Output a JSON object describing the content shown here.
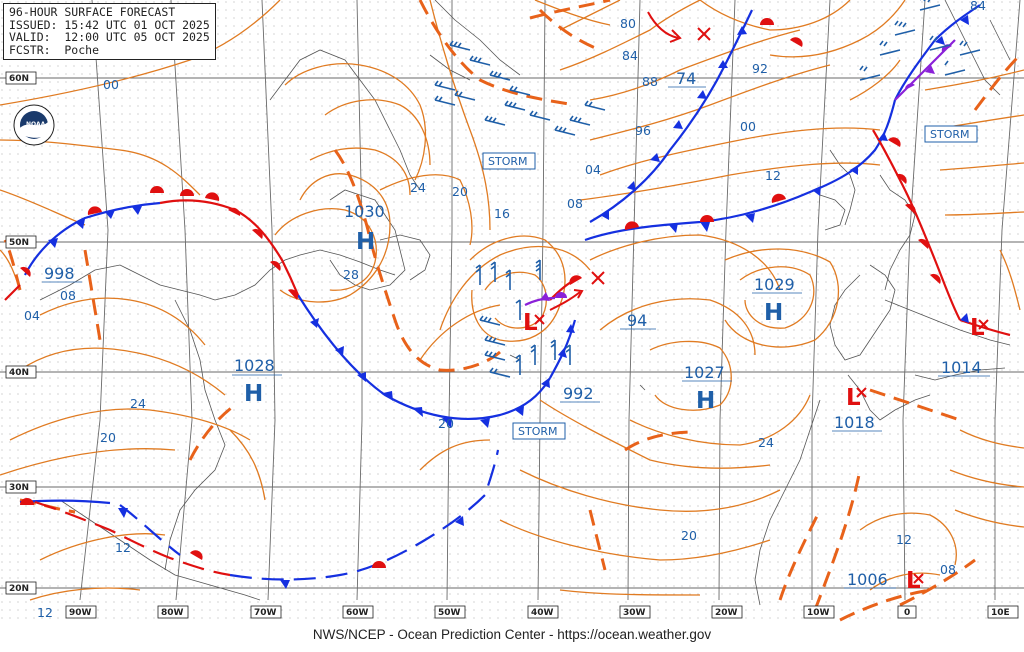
{
  "header": {
    "line1": "96-HOUR SURFACE FORECAST",
    "line2": "ISSUED: 15:42 UTC 01 OCT 2025",
    "line3": "VALID:  12:00 UTC 05 OCT 2025",
    "line4": "FCSTR:  Poche"
  },
  "footer": "NWS/NCEP - Ocean Prediction Center - https://ocean.weather.gov",
  "lat_labels": [
    "60N",
    "50N",
    "40N",
    "30N",
    "20N"
  ],
  "lon_labels": [
    "90W",
    "80W",
    "70W",
    "60W",
    "50W",
    "40W",
    "30W",
    "20W",
    "10W",
    "0",
    "10E"
  ],
  "logo": "noaa-logo",
  "pressure_centers": [
    {
      "type": "H",
      "value": "1030"
    },
    {
      "type": "H",
      "value": "1028"
    },
    {
      "type": "H",
      "value": "1029"
    },
    {
      "type": "H",
      "value": "1027"
    },
    {
      "type": "L",
      "value": "998"
    },
    {
      "type": "L",
      "value": "992"
    },
    {
      "type": "L",
      "value": "1018"
    },
    {
      "type": "L",
      "value": "1014"
    },
    {
      "type": "L",
      "value": "1006"
    },
    {
      "type": "L",
      "value": "74"
    },
    {
      "type": "L",
      "value": "94"
    }
  ],
  "storm_labels": [
    "STORM",
    "STORM",
    "STORM"
  ],
  "isobar_labels": [
    "00",
    "08",
    "04",
    "24",
    "20",
    "12",
    "12",
    "24",
    "20",
    "28",
    "16",
    "08",
    "04",
    "00",
    "12",
    "20",
    "24",
    "20",
    "12",
    "08",
    "80",
    "84",
    "88",
    "92",
    "96",
    "84"
  ],
  "colors": {
    "isobar": "#e07b22",
    "cold_front": "#1530e0",
    "warm_front": "#e01010",
    "occluded": "#8a20d8",
    "text": "#1f5fa8",
    "coast": "#555555",
    "grid": "#555555"
  }
}
